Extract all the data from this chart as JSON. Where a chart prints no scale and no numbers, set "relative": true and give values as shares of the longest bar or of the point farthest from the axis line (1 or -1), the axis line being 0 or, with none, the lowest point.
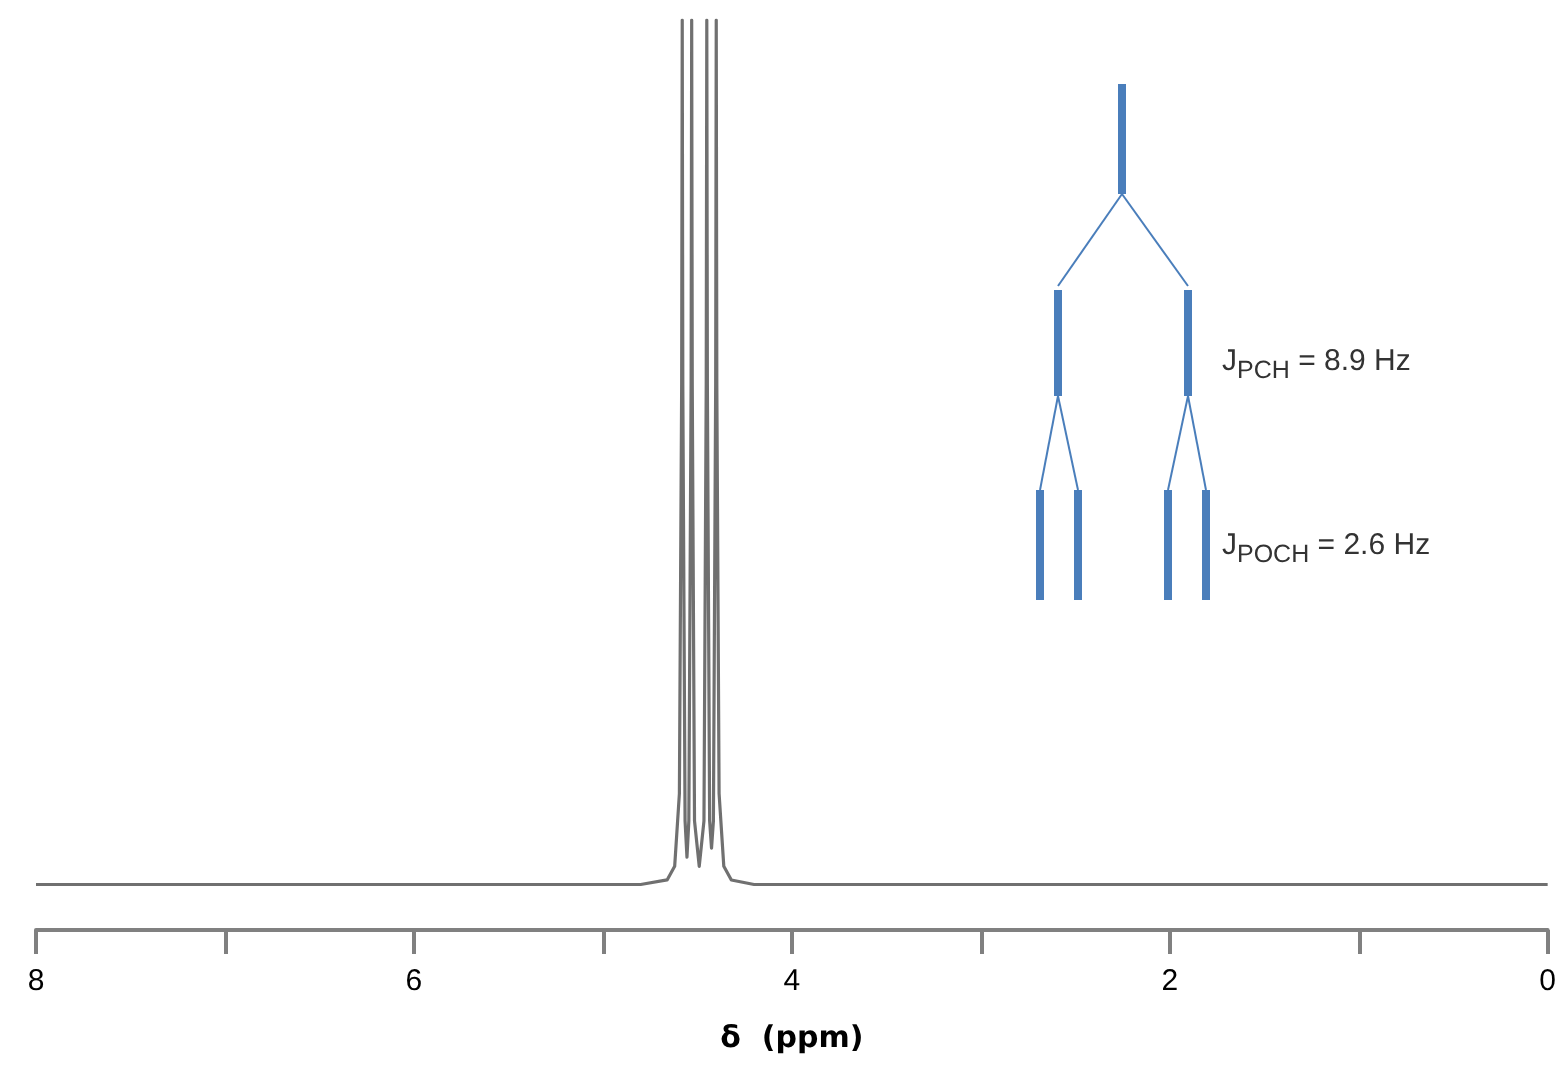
{
  "chart_data": {
    "type": "line",
    "xlabel": "δ  (ppm)",
    "relative": true,
    "tick_labels": "x",
    "xlim": [
      8,
      0
    ],
    "xticks": [
      8,
      {
        "value": 7,
        "label": null
      },
      6,
      {
        "value": 5,
        "label": null
      },
      4,
      {
        "value": 3,
        "label": null
      },
      2,
      {
        "value": 1,
        "label": null
      },
      0
    ],
    "annotations": [
      "J$_{PCH}$ = 8.9 Hz",
      "J$_{POCH}$ = 2.6 Hz"
    ],
    "x": [
      8,
      6,
      4.8,
      4.66,
      4.62,
      4.595,
      4.583,
      4.58,
      4.577,
      4.565,
      4.555,
      4.545,
      4.533,
      4.53,
      4.527,
      4.515,
      4.49,
      4.465,
      4.453,
      4.45,
      4.447,
      4.435,
      4.425,
      4.415,
      4.403,
      4.4,
      4.397,
      4.385,
      4.36,
      4.32,
      4.2,
      2,
      0
    ],
    "series": [
      {
        "color": "#707070",
        "values": [
          0.05,
          0.05,
          0.05,
          0.055,
          0.07,
          0.15,
          0.6,
          1,
          0.6,
          0.12,
          0.08,
          0.12,
          0.6,
          1,
          0.6,
          0.12,
          0.07,
          0.12,
          0.6,
          1,
          0.6,
          0.12,
          0.09,
          0.12,
          0.6,
          1,
          0.6,
          0.15,
          0.07,
          0.055,
          0.05,
          0.05,
          0.05
        ]
      }
    ]
  }
}
